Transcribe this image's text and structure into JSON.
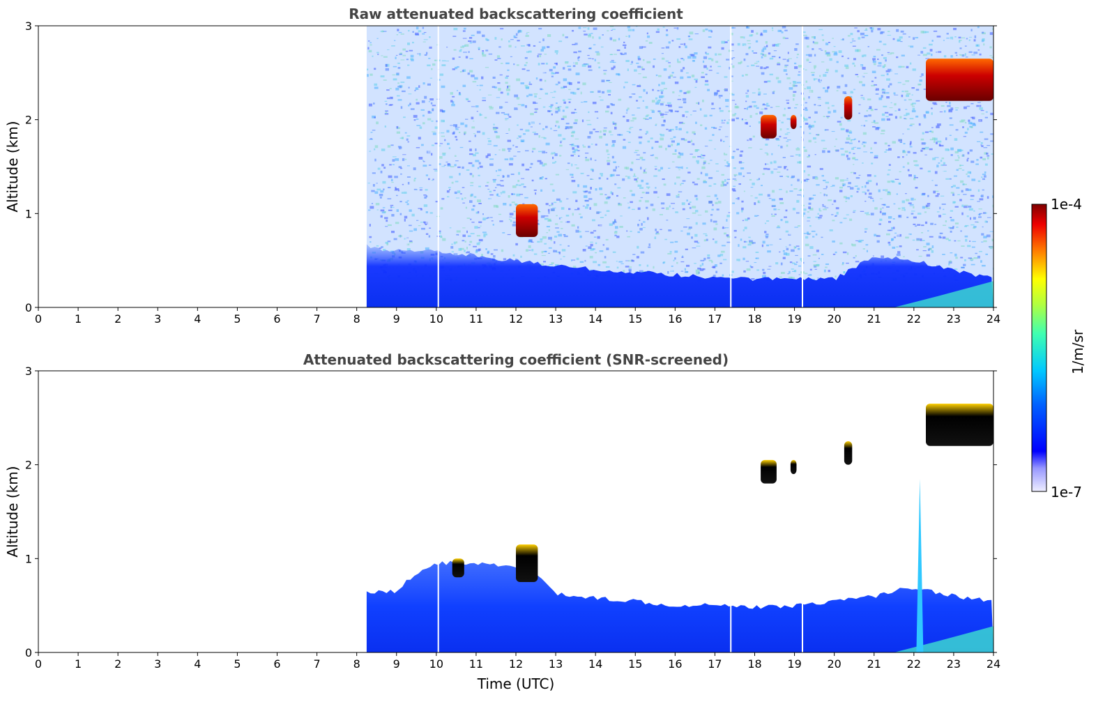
{
  "figure": {
    "colorbar": {
      "label": "1/m/sr",
      "max_label": "1e-4",
      "min_label": "1e-7",
      "scale": "log",
      "colormap": "jet"
    }
  },
  "chart_data": [
    {
      "type": "heatmap",
      "title": "Raw attenuated backscattering coefficient",
      "xlabel": "",
      "ylabel": "Altitude (km)",
      "xlim": [
        0,
        24
      ],
      "ylim": [
        0,
        3
      ],
      "x_ticks": [
        "0",
        "1",
        "2",
        "3",
        "4",
        "5",
        "6",
        "7",
        "8",
        "9",
        "10",
        "11",
        "12",
        "13",
        "14",
        "15",
        "16",
        "17",
        "18",
        "19",
        "20",
        "21",
        "22",
        "23",
        "24"
      ],
      "y_ticks": [
        "0",
        "1",
        "2",
        "3"
      ],
      "data_start_time": 8.25,
      "gaps": [
        10.05,
        17.4,
        19.2
      ],
      "boundary_layer_top_km": [
        [
          8.3,
          0.65
        ],
        [
          9,
          0.6
        ],
        [
          10,
          0.6
        ],
        [
          11,
          0.55
        ],
        [
          12,
          0.5
        ],
        [
          13,
          0.45
        ],
        [
          14,
          0.4
        ],
        [
          16,
          0.35
        ],
        [
          18,
          0.3
        ],
        [
          20,
          0.3
        ],
        [
          21,
          0.55
        ],
        [
          22,
          0.5
        ],
        [
          23,
          0.4
        ],
        [
          24,
          0.3
        ]
      ],
      "cloud_layers": [
        {
          "t_start": 12.0,
          "t_end": 12.55,
          "z_bottom_km": 0.75,
          "z_top_km": 1.1
        },
        {
          "t_start": 18.15,
          "t_end": 18.55,
          "z_bottom_km": 1.8,
          "z_top_km": 2.05
        },
        {
          "t_start": 18.9,
          "t_end": 19.05,
          "z_bottom_km": 1.9,
          "z_top_km": 2.05
        },
        {
          "t_start": 20.25,
          "t_end": 20.45,
          "z_bottom_km": 2.0,
          "z_top_km": 2.25
        },
        {
          "t_start": 22.3,
          "t_end": 24.0,
          "z_bottom_km": 2.2,
          "z_top_km": 2.65
        }
      ]
    },
    {
      "type": "heatmap",
      "title": "Attenuated backscattering coefficient (SNR-screened)",
      "xlabel": "Time (UTC)",
      "ylabel": "Altitude (km)",
      "xlim": [
        0,
        24
      ],
      "ylim": [
        0,
        3
      ],
      "x_ticks": [
        "0",
        "1",
        "2",
        "3",
        "4",
        "5",
        "6",
        "7",
        "8",
        "9",
        "10",
        "11",
        "12",
        "13",
        "14",
        "15",
        "16",
        "17",
        "18",
        "19",
        "20",
        "21",
        "22",
        "23",
        "24"
      ],
      "y_ticks": [
        "0",
        "1",
        "2",
        "3"
      ],
      "data_start_time": 8.25,
      "gaps": [
        10.05,
        17.4,
        19.2
      ],
      "boundary_layer_top_km": [
        [
          8.3,
          0.65
        ],
        [
          9,
          0.65
        ],
        [
          9.5,
          0.85
        ],
        [
          10,
          0.95
        ],
        [
          11,
          0.95
        ],
        [
          12,
          0.9
        ],
        [
          12.5,
          0.85
        ],
        [
          13,
          0.62
        ],
        [
          14,
          0.58
        ],
        [
          15,
          0.55
        ],
        [
          16,
          0.5
        ],
        [
          17,
          0.52
        ],
        [
          18,
          0.48
        ],
        [
          19,
          0.5
        ],
        [
          20,
          0.55
        ],
        [
          21,
          0.6
        ],
        [
          22,
          0.7
        ],
        [
          23,
          0.6
        ],
        [
          24,
          0.55
        ]
      ],
      "cloud_layers": [
        {
          "t_start": 10.4,
          "t_end": 10.7,
          "z_bottom_km": 0.8,
          "z_top_km": 1.0
        },
        {
          "t_start": 12.0,
          "t_end": 12.55,
          "z_bottom_km": 0.75,
          "z_top_km": 1.15
        },
        {
          "t_start": 18.15,
          "t_end": 18.55,
          "z_bottom_km": 1.8,
          "z_top_km": 2.05
        },
        {
          "t_start": 18.9,
          "t_end": 19.05,
          "z_bottom_km": 1.9,
          "z_top_km": 2.05
        },
        {
          "t_start": 20.25,
          "t_end": 20.45,
          "z_bottom_km": 2.0,
          "z_top_km": 2.25
        },
        {
          "t_start": 22.3,
          "t_end": 24.0,
          "z_bottom_km": 2.2,
          "z_top_km": 2.65
        }
      ],
      "plume": {
        "t": 22.15,
        "z_top_km": 1.85
      }
    }
  ]
}
